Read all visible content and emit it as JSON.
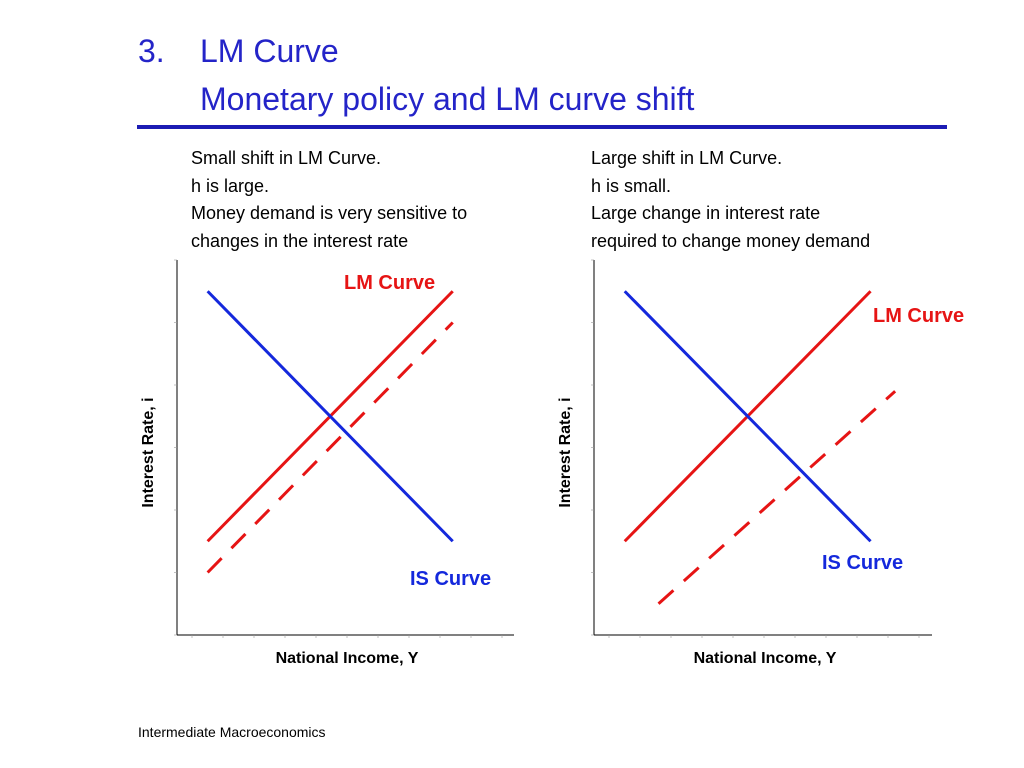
{
  "title": {
    "number": "3.",
    "line1": "LM Curve",
    "line2": "Monetary policy and LM curve shift"
  },
  "descriptions": {
    "left": [
      "Small shift in LM Curve.",
      "h is large.",
      "Money demand is very sensitive to",
      "changes in the interest rate"
    ],
    "right": [
      "Large shift in LM Curve.",
      "h is small.",
      "Large change in interest rate",
      "required to change money demand"
    ]
  },
  "colors": {
    "title": "#2424c8",
    "lm": "#e61414",
    "is": "#1428dc",
    "axis": "#000000"
  },
  "chart_data": [
    {
      "type": "line",
      "xlabel": "National Income, Y",
      "ylabel": "Interest Rate, i",
      "xlim": [
        0,
        11
      ],
      "ylim": [
        0,
        12
      ],
      "grid": false,
      "series": [
        {
          "name": "LM Curve",
          "style": "solid",
          "color": "#e61414",
          "x": [
            1,
            9
          ],
          "y": [
            3,
            11
          ]
        },
        {
          "name": "",
          "style": "dashed",
          "color": "#e61414",
          "x": [
            1,
            9
          ],
          "y": [
            2,
            10
          ]
        },
        {
          "name": "IS Curve",
          "style": "solid",
          "color": "#1428dc",
          "x": [
            1,
            9
          ],
          "y": [
            11,
            3
          ]
        }
      ]
    },
    {
      "type": "line",
      "xlabel": "National Income, Y",
      "ylabel": "Interest Rate, i",
      "xlim": [
        0,
        11
      ],
      "ylim": [
        0,
        12
      ],
      "grid": false,
      "series": [
        {
          "name": "LM Curve",
          "style": "solid",
          "color": "#e61414",
          "x": [
            1,
            9
          ],
          "y": [
            3,
            11
          ]
        },
        {
          "name": "",
          "style": "dashed",
          "color": "#e61414",
          "x": [
            2.1,
            9.8
          ],
          "y": [
            1,
            7.8
          ]
        },
        {
          "name": "IS Curve",
          "style": "solid",
          "color": "#1428dc",
          "x": [
            1,
            9
          ],
          "y": [
            11,
            3
          ]
        }
      ]
    }
  ],
  "footer": "Intermediate Macroeconomics"
}
